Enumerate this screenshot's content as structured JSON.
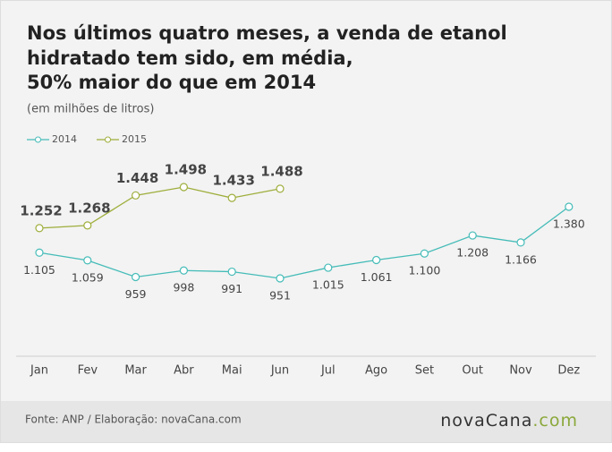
{
  "chart_data": {
    "type": "line",
    "title": [
      "Nos últimos quatro meses, a venda de etanol",
      "hidratado tem sido, em média,",
      "50% maior do que em 2014"
    ],
    "subtitle": "(em milhões de litros)",
    "categories": [
      "Jan",
      "Fev",
      "Mar",
      "Abr",
      "Mai",
      "Jun",
      "Jul",
      "Ago",
      "Set",
      "Out",
      "Nov",
      "Dez"
    ],
    "series": [
      {
        "name": "2014",
        "color": "#45bcb8",
        "values": [
          1105,
          1059,
          959,
          998,
          991,
          951,
          1015,
          1061,
          1100,
          1208,
          1166,
          1380
        ],
        "value_labels": [
          "1.105",
          "1.059",
          "959",
          "998",
          "991",
          "951",
          "1.015",
          "1.061",
          "1.100",
          "1.208",
          "1.166",
          "1.380"
        ]
      },
      {
        "name": "2015",
        "color": "#9fae3c",
        "values": [
          1252,
          1268,
          1448,
          1498,
          1433,
          1488,
          null,
          null,
          null,
          null,
          null,
          null
        ],
        "value_labels": [
          "1.252",
          "1.268",
          "1.448",
          "1.498",
          "1.433",
          "1.488",
          null,
          null,
          null,
          null,
          null,
          null
        ]
      }
    ],
    "legend": "top-left",
    "source": "Fonte: ANP / Elaboração: novaCana.com",
    "logo": {
      "name": "novaCana",
      "suffix": ".com"
    }
  }
}
